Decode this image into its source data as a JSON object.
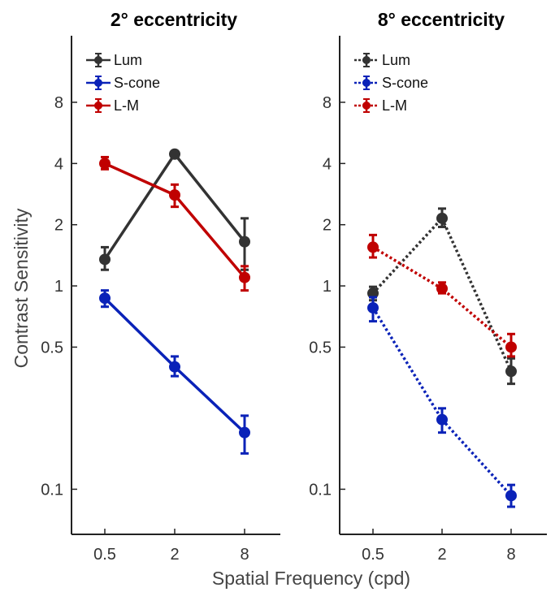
{
  "chart_data": [
    {
      "type": "line",
      "title": "2° eccentricity",
      "ylabel": "Contrast Sensitivity",
      "xlabel": "Spatial Frequency (cpd)",
      "x_scale": "log2",
      "y_scale": "log",
      "categories": [
        "0.5",
        "2",
        "8"
      ],
      "x": [
        0.5,
        2,
        8
      ],
      "ylim": [
        0.06,
        17
      ],
      "yticks": [
        0.1,
        0.5,
        1,
        2,
        4,
        8
      ],
      "ytick_labels": [
        "0.1",
        "0.5",
        "1",
        "2",
        "4",
        "8"
      ],
      "line_style": "solid",
      "legend_position": "top-left",
      "series": [
        {
          "name": "Lum",
          "color": "#333333",
          "values": [
            1.35,
            4.45,
            1.65
          ],
          "err_low": [
            1.2,
            4.3,
            1.2
          ],
          "err_high": [
            1.55,
            4.55,
            2.15
          ]
        },
        {
          "name": "S-cone",
          "color": "#0a22b8",
          "values": [
            0.87,
            0.4,
            0.19
          ],
          "err_low": [
            0.79,
            0.36,
            0.15
          ],
          "err_high": [
            0.95,
            0.45,
            0.23
          ]
        },
        {
          "name": "L-M",
          "color": "#c00000",
          "values": [
            4.0,
            2.8,
            1.1
          ],
          "err_low": [
            3.75,
            2.45,
            0.95
          ],
          "err_high": [
            4.3,
            3.15,
            1.25
          ]
        }
      ]
    },
    {
      "type": "line",
      "title": "8° eccentricity",
      "x_scale": "log2",
      "y_scale": "log",
      "categories": [
        "0.5",
        "2",
        "8"
      ],
      "x": [
        0.5,
        2,
        8
      ],
      "ylim": [
        0.06,
        17
      ],
      "yticks": [
        0.1,
        0.5,
        1,
        2,
        4,
        8
      ],
      "ytick_labels": [
        "0.1",
        "0.5",
        "1",
        "2",
        "4",
        "8"
      ],
      "line_style": "dotted",
      "legend_position": "top-left",
      "series": [
        {
          "name": "Lum",
          "color": "#333333",
          "values": [
            0.92,
            2.15,
            0.38
          ],
          "err_low": [
            0.85,
            1.95,
            0.33
          ],
          "err_high": [
            0.99,
            2.4,
            0.44
          ]
        },
        {
          "name": "S-cone",
          "color": "#0a22b8",
          "values": [
            0.78,
            0.22,
            0.093
          ],
          "err_low": [
            0.67,
            0.19,
            0.082
          ],
          "err_high": [
            0.88,
            0.25,
            0.105
          ]
        },
        {
          "name": "L-M",
          "color": "#c00000",
          "values": [
            1.55,
            0.97,
            0.5
          ],
          "err_low": [
            1.38,
            0.92,
            0.45
          ],
          "err_high": [
            1.78,
            1.04,
            0.58
          ]
        }
      ]
    }
  ]
}
